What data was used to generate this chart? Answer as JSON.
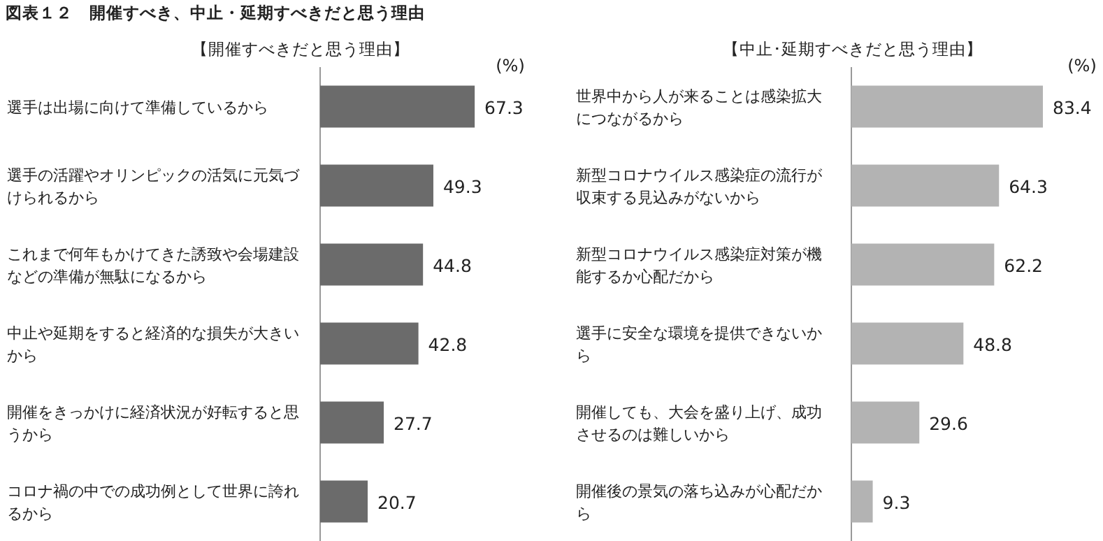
{
  "chart_data": [
    {
      "type": "bar",
      "orientation": "horizontal",
      "title": "図表１２　開催すべき、中止・延期すべきだと思う理由",
      "subtitle": "【開催すべきだと思う理由】",
      "annotations": [
        "(%)"
      ],
      "data_labels": true,
      "color": "#6b6b6b",
      "categories": [
        "選手は出場に向けて準備しているから",
        "選手の活躍やオリンピックの活気に元気づけられるから",
        "これまで何年もかけてきた誘致や会場建設などの準備が無駄になるから",
        "中止や延期をすると経済的な損失が大きいから",
        "開催をきっかけに経済状況が好転すると思うから",
        "コロナ禍の中での成功例として世界に誇れるから"
      ],
      "values": [
        67.3,
        49.3,
        44.8,
        42.8,
        27.7,
        20.7
      ]
    },
    {
      "type": "bar",
      "orientation": "horizontal",
      "subtitle": "【中止･延期すべきだと思う理由】",
      "annotations": [
        "(%)"
      ],
      "data_labels": true,
      "color": "#b3b3b3",
      "categories": [
        "世界中から人が来ることは感染拡大につながるから",
        "新型コロナウイルス感染症の流行が収束する見込みがないから",
        "新型コロナウイルス感染症対策が機能するか心配だから",
        "選手に安全な環境を提供できないから",
        "開催しても、大会を盛り上げ、成功させるのは難しいから",
        "開催後の景気の落ち込みが心配だから"
      ],
      "values": [
        83.4,
        64.3,
        62.2,
        48.8,
        29.6,
        9.3
      ]
    }
  ]
}
